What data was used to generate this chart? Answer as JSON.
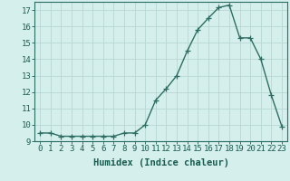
{
  "x": [
    0,
    1,
    2,
    3,
    4,
    5,
    6,
    7,
    8,
    9,
    10,
    11,
    12,
    13,
    14,
    15,
    16,
    17,
    18,
    19,
    20,
    21,
    22,
    23
  ],
  "y": [
    9.5,
    9.5,
    9.3,
    9.3,
    9.3,
    9.3,
    9.3,
    9.3,
    9.5,
    9.5,
    10.0,
    11.5,
    12.2,
    13.0,
    14.5,
    15.8,
    16.5,
    17.15,
    17.3,
    15.3,
    15.3,
    14.0,
    11.8,
    9.9
  ],
  "ylim_min": 9,
  "ylim_max": 17.5,
  "yticks": [
    9,
    10,
    11,
    12,
    13,
    14,
    15,
    16,
    17
  ],
  "xticks": [
    0,
    1,
    2,
    3,
    4,
    5,
    6,
    7,
    8,
    9,
    10,
    11,
    12,
    13,
    14,
    15,
    16,
    17,
    18,
    19,
    20,
    21,
    22,
    23
  ],
  "xlabel": "Humidex (Indice chaleur)",
  "line_color": "#2d6e62",
  "marker": "+",
  "bg_color": "#d5efed",
  "grid_color": "#b8d8d4",
  "axis_color": "#2d6e62",
  "label_color": "#1a5c50",
  "tick_fontsize": 6.5,
  "xlabel_fontsize": 7.5,
  "marker_size": 4,
  "line_width": 1.0
}
